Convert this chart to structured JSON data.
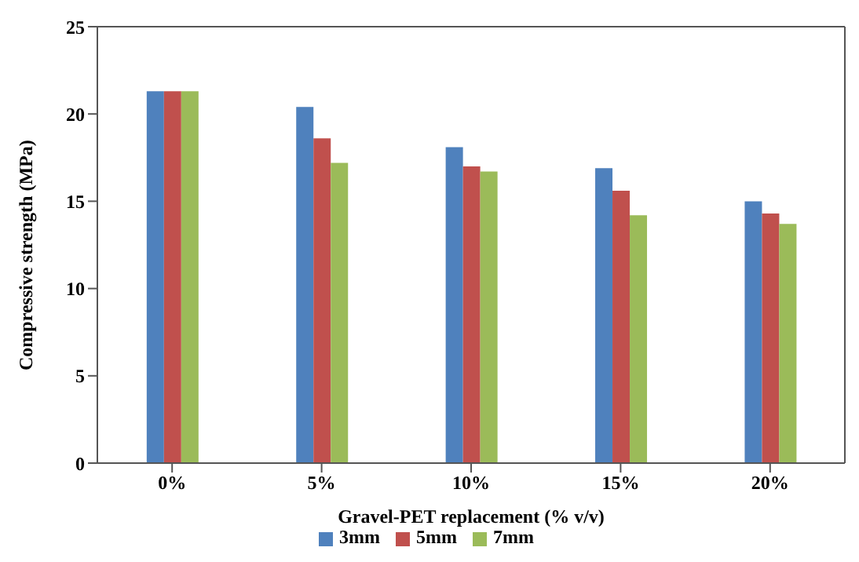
{
  "chart_data": {
    "type": "bar",
    "xlabel": "Gravel-PET replacement (% v/v)",
    "ylabel": "Compressive strength (MPa)",
    "categories": [
      "0%",
      "5%",
      "10%",
      "15%",
      "20%"
    ],
    "series": [
      {
        "name": "3mm",
        "color": "#4f81bd",
        "values": [
          21.3,
          20.4,
          18.1,
          16.9,
          15.0
        ]
      },
      {
        "name": "5mm",
        "color": "#c0504d",
        "values": [
          21.3,
          18.6,
          17.0,
          15.6,
          14.3
        ]
      },
      {
        "name": "7mm",
        "color": "#9bbb59",
        "values": [
          21.3,
          17.2,
          16.7,
          14.2,
          13.7
        ]
      }
    ],
    "ylim": [
      0,
      25
    ],
    "yticks": [
      0,
      5,
      10,
      15,
      20,
      25
    ],
    "grid": false,
    "legend": "bottom"
  }
}
